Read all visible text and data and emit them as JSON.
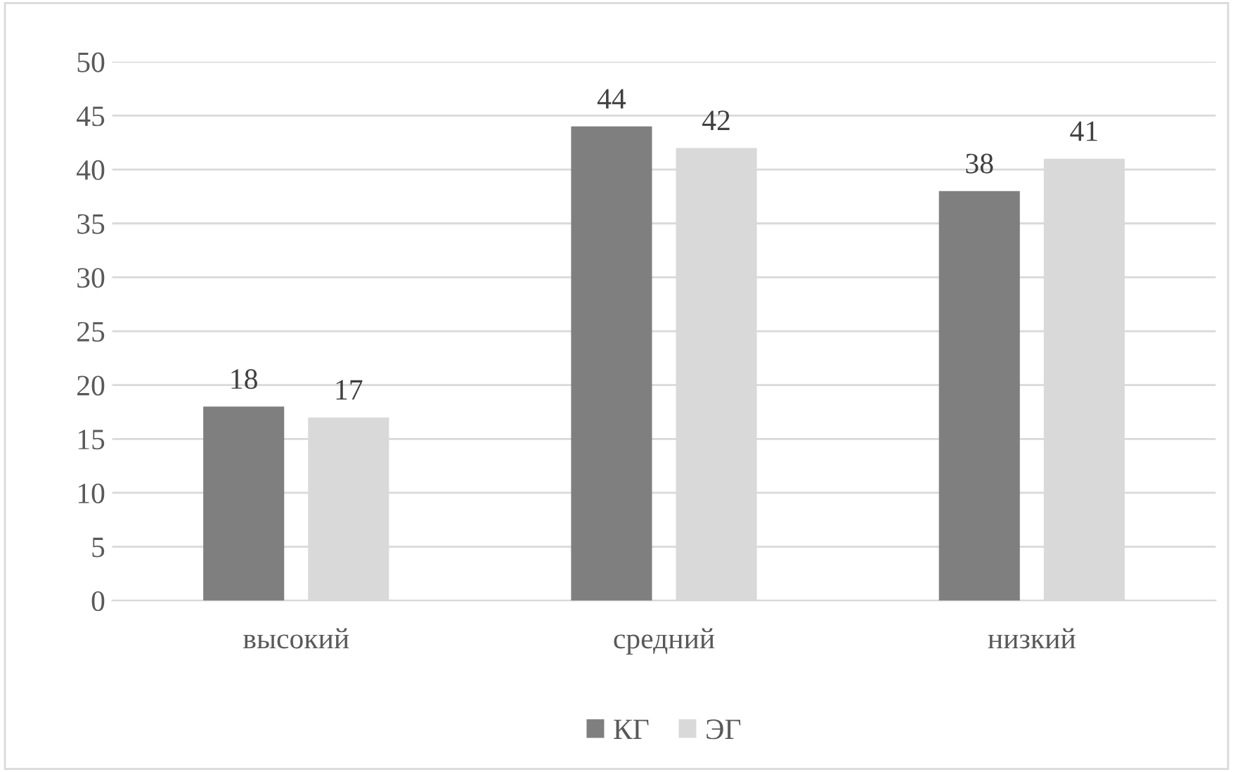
{
  "chart_data": {
    "type": "bar",
    "categories": [
      "высокий",
      "средний",
      "низкий"
    ],
    "series": [
      {
        "name": "КГ",
        "color": "#7f7f7f",
        "values": [
          18,
          44,
          38
        ]
      },
      {
        "name": "ЭГ",
        "color": "#d9d9d9",
        "values": [
          17,
          42,
          41
        ]
      }
    ],
    "ylim": [
      0,
      50
    ],
    "yticks": [
      0,
      5,
      10,
      15,
      20,
      25,
      30,
      35,
      40,
      45,
      50
    ],
    "grid": "y",
    "legend": "bottom",
    "data_labels": true
  }
}
